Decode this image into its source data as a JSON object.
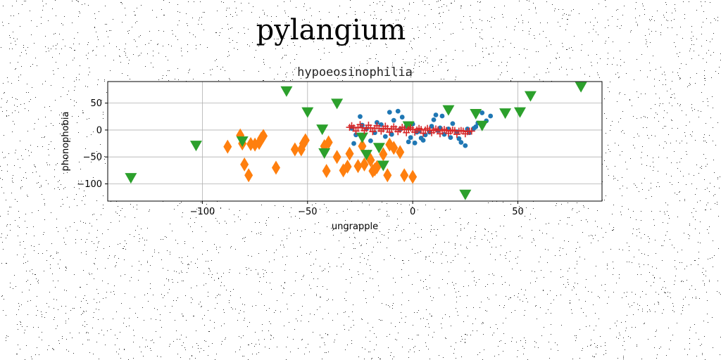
{
  "page": {
    "title": "pylangium"
  },
  "chart_data": {
    "type": "scatter",
    "title": "hypoeosinophilia",
    "xlabel": "ungrapple",
    "ylabel": "phonophobia",
    "xlim": [
      -145,
      90
    ],
    "ylim": [
      -132,
      90
    ],
    "xticks": [
      -100,
      -50,
      0,
      50
    ],
    "yticks": [
      50,
      0,
      -50,
      -100
    ],
    "grid": true,
    "legend": "none",
    "colors": [
      "#1f77b4",
      "#ff7f0e",
      "#2ca02c",
      "#d62728"
    ],
    "series": [
      {
        "marker": "circle",
        "color": "#1f77b4",
        "points": [
          [
            -29,
            3
          ],
          [
            -27,
            -9
          ],
          [
            -25,
            25
          ],
          [
            -22,
            2
          ],
          [
            -20,
            -20
          ],
          [
            -18,
            -5
          ],
          [
            -15,
            10
          ],
          [
            -13,
            -12
          ],
          [
            -11,
            33
          ],
          [
            -9,
            18
          ],
          [
            -7,
            35
          ],
          [
            -5,
            24
          ],
          [
            -3,
            7
          ],
          [
            -1,
            -14
          ],
          [
            1,
            -24
          ],
          [
            2,
            -4
          ],
          [
            4,
            -15
          ],
          [
            6,
            -9
          ],
          [
            8,
            -4
          ],
          [
            10,
            19
          ],
          [
            11,
            28
          ],
          [
            13,
            4
          ],
          [
            15,
            -8
          ],
          [
            17,
            2
          ],
          [
            19,
            12
          ],
          [
            21,
            -3
          ],
          [
            23,
            -23
          ],
          [
            25,
            -29
          ],
          [
            27,
            -5
          ],
          [
            29,
            3
          ],
          [
            31,
            13
          ],
          [
            33,
            32
          ],
          [
            35,
            17
          ],
          [
            37,
            26
          ],
          [
            -2,
            -22
          ],
          [
            5,
            -19
          ],
          [
            9,
            7
          ],
          [
            14,
            26
          ],
          [
            -17,
            14
          ],
          [
            -6,
            1
          ],
          [
            -28,
            -25
          ],
          [
            0,
            11
          ],
          [
            22,
            -16
          ],
          [
            26,
            2
          ],
          [
            -24,
            9
          ],
          [
            3,
            -2
          ],
          [
            18,
            -14
          ],
          [
            -10,
            -8
          ],
          [
            12,
            -1
          ],
          [
            30,
            6
          ]
        ]
      },
      {
        "marker": "thin_diamond",
        "color": "#ff7f0e",
        "points": [
          [
            -88,
            -31
          ],
          [
            -82,
            -10
          ],
          [
            -81,
            -25
          ],
          [
            -80,
            -64
          ],
          [
            -78,
            -84
          ],
          [
            -77,
            -26
          ],
          [
            -75,
            -27
          ],
          [
            -73,
            -24
          ],
          [
            -72,
            -16
          ],
          [
            -71,
            -11
          ],
          [
            -65,
            -70
          ],
          [
            -56,
            -36
          ],
          [
            -53,
            -36
          ],
          [
            -52,
            -25
          ],
          [
            -51,
            -19
          ],
          [
            -42,
            -30
          ],
          [
            -41,
            -76
          ],
          [
            -40,
            -23
          ],
          [
            -36,
            -50
          ],
          [
            -33,
            -75
          ],
          [
            -31,
            -68
          ],
          [
            -30,
            -44
          ],
          [
            -26,
            -67
          ],
          [
            -24,
            -30
          ],
          [
            -23,
            -64
          ],
          [
            -21,
            -49
          ],
          [
            -19,
            -76
          ],
          [
            -18,
            -73
          ],
          [
            -17,
            -69
          ],
          [
            -14,
            -45
          ],
          [
            -12,
            -84
          ],
          [
            -11,
            -27
          ],
          [
            -9,
            -33
          ],
          [
            -6,
            -41
          ],
          [
            -4,
            -84
          ],
          [
            0,
            -87
          ],
          [
            -20,
            -56
          ]
        ]
      },
      {
        "marker": "triangle_down",
        "color": "#2ca02c",
        "points": [
          [
            -134,
            -89
          ],
          [
            -103,
            -29
          ],
          [
            -81,
            -21
          ],
          [
            -60,
            72
          ],
          [
            -50,
            33
          ],
          [
            -43,
            1
          ],
          [
            -42,
            -43
          ],
          [
            -36,
            49
          ],
          [
            -24,
            -14
          ],
          [
            -22,
            -46
          ],
          [
            -16,
            -33
          ],
          [
            -14,
            -66
          ],
          [
            -2,
            7
          ],
          [
            17,
            37
          ],
          [
            25,
            -120
          ],
          [
            30,
            30
          ],
          [
            33,
            8
          ],
          [
            44,
            31
          ],
          [
            51,
            33
          ],
          [
            56,
            63
          ],
          [
            80,
            80
          ]
        ]
      },
      {
        "marker": "plus",
        "color": "#d62728",
        "points": [
          [
            -30,
            5
          ],
          [
            -28,
            4
          ],
          [
            -26,
            5
          ],
          [
            -24,
            4
          ],
          [
            -22,
            3
          ],
          [
            -20,
            4
          ],
          [
            -18,
            3
          ],
          [
            -16,
            3
          ],
          [
            -14,
            2
          ],
          [
            -12,
            3
          ],
          [
            -10,
            2
          ],
          [
            -8,
            2
          ],
          [
            -6,
            1
          ],
          [
            -4,
            2
          ],
          [
            -2,
            1
          ],
          [
            0,
            1
          ],
          [
            2,
            0
          ],
          [
            4,
            1
          ],
          [
            6,
            0
          ],
          [
            8,
            0
          ],
          [
            10,
            -1
          ],
          [
            12,
            0
          ],
          [
            14,
            -1
          ],
          [
            16,
            -1
          ],
          [
            18,
            -2
          ],
          [
            20,
            -1
          ],
          [
            22,
            -2
          ],
          [
            24,
            -2
          ],
          [
            26,
            -3
          ],
          [
            28,
            -2
          ],
          [
            -29,
            8
          ],
          [
            -25,
            10
          ],
          [
            -21,
            9
          ],
          [
            -17,
            8
          ],
          [
            -13,
            7
          ],
          [
            -9,
            6
          ],
          [
            -5,
            5
          ],
          [
            -1,
            4
          ],
          [
            3,
            3
          ],
          [
            7,
            3
          ],
          [
            11,
            2
          ],
          [
            15,
            1
          ],
          [
            19,
            0
          ],
          [
            23,
            -1
          ],
          [
            27,
            -2
          ],
          [
            -27,
            -2
          ],
          [
            -23,
            -1
          ],
          [
            -19,
            -3
          ],
          [
            -15,
            -2
          ],
          [
            -11,
            -4
          ],
          [
            -7,
            -3
          ],
          [
            -3,
            -5
          ],
          [
            1,
            -4
          ],
          [
            5,
            -6
          ],
          [
            9,
            -5
          ],
          [
            13,
            -7
          ],
          [
            17,
            -6
          ],
          [
            21,
            -8
          ],
          [
            25,
            -7
          ]
        ]
      }
    ]
  }
}
